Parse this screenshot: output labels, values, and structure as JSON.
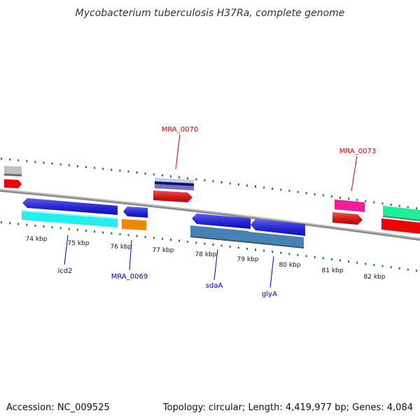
{
  "title": "Mycobacterium tuberculosis H37Ra, complete genome",
  "footer": {
    "accession": "Accession: NC_009525",
    "summary": "Topology: circular; Length: 4,419,977 bp; Genes: 4,084"
  },
  "colors": {
    "backbone": "#8a8a8a",
    "ticks": "#1a7a1a",
    "forward_label": "#cc0000",
    "reverse_label": "#0000aa"
  },
  "scale_labels": [
    "74 kbp",
    "75 kbp",
    "76 kbp",
    "77 kbp",
    "78 kbp",
    "79 kbp",
    "80 kbp",
    "81 kbp",
    "82 kbp"
  ],
  "gene_labels": [
    {
      "text": "MRA_0070",
      "strand": "forward"
    },
    {
      "text": "MRA_0073",
      "strand": "forward"
    },
    {
      "text": "icd2",
      "strand": "reverse"
    },
    {
      "text": "MRA_0069",
      "strand": "reverse"
    },
    {
      "text": "sdaA",
      "strand": "reverse"
    },
    {
      "text": "glyA",
      "strand": "reverse"
    }
  ]
}
